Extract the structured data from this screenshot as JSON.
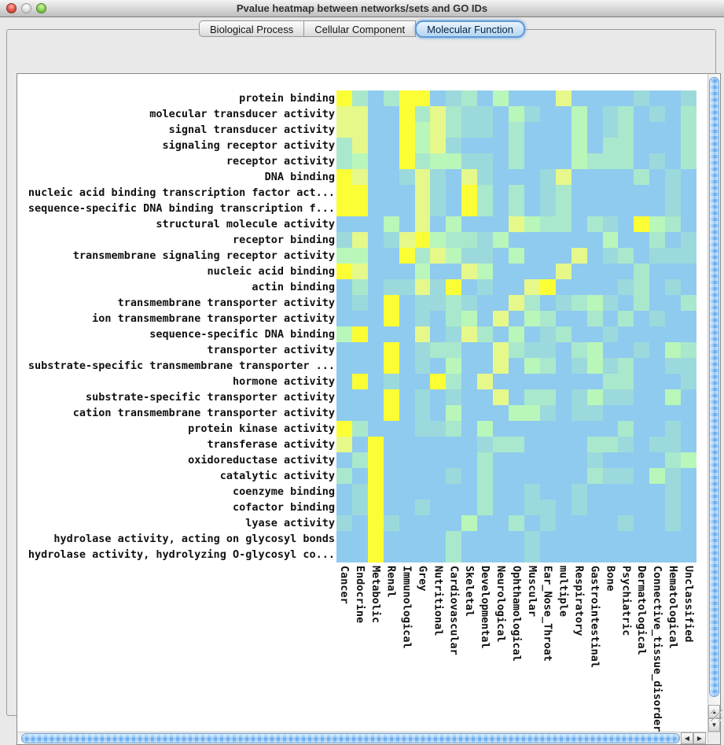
{
  "window": {
    "title": "Pvalue heatmap between networks/sets and GO IDs"
  },
  "tabs": [
    {
      "label": "Biological Process",
      "selected": false
    },
    {
      "label": "Cellular Component",
      "selected": false
    },
    {
      "label": "Molecular Function",
      "selected": true
    }
  ],
  "scrollbar_icons": {
    "up": "▲",
    "down": "▼",
    "left": "◀",
    "right": "▶"
  },
  "chart_data": {
    "type": "heatmap",
    "title": "Pvalue heatmap between networks/sets and GO IDs",
    "subtitle_tab": "Molecular Function",
    "legend_position": "none",
    "grid": "off",
    "rows": [
      "protein binding",
      "molecular transducer activity",
      "signal transducer activity",
      "signaling receptor activity",
      "receptor activity",
      "DNA binding",
      "nucleic acid binding transcription factor act...",
      "sequence-specific DNA binding transcription f...",
      "structural molecule activity",
      "receptor binding",
      "transmembrane signaling receptor activity",
      "nucleic acid binding",
      "actin binding",
      "transmembrane transporter activity",
      "ion transmembrane transporter activity",
      "sequence-specific DNA binding",
      "transporter activity",
      "substrate-specific transmembrane transporter ...",
      "hormone activity",
      "substrate-specific transporter activity",
      "cation transmembrane transporter activity",
      "protein kinase activity",
      "transferase activity",
      "oxidoreductase activity",
      "catalytic activity",
      "coenzyme binding",
      "cofactor binding",
      "lyase activity",
      "hydrolase activity, acting on glycosyl bonds",
      "hydrolase activity, hydrolyzing O-glycosyl co..."
    ],
    "columns": [
      "Cancer",
      "Endocrine",
      "Metabolic",
      "Renal",
      "Immunological",
      "Grey",
      "Nutritional",
      "Cardiovascular",
      "Skeletal",
      "Developmental",
      "Neurological",
      "Ophthamological",
      "Muscular",
      "Ear_Nose_Throat",
      "multiple",
      "Respiratory",
      "Gastrointestinal",
      "Bone",
      "Psychiatric",
      "Dermatological",
      "Connective_tissue_disorder",
      "Hematological",
      "Unclassified"
    ],
    "palette": {
      "Y": "#FBFD35",
      "y": "#E6F88A",
      "g": "#B9F6BA",
      "t": "#A9E8CC",
      "c": "#9CD9DC",
      "b": "#8FCBEE"
    },
    "palette_meaning": {
      "Y": "bright yellow — most significant (lowest p-value)",
      "y": "pale yellow-green — very significant",
      "g": "mint green — significant",
      "t": "green-teal — mildly significant",
      "c": "teal-blue — weakly significant",
      "b": "light blue — background (highest p-value)"
    },
    "cells": [
      "YtbtYYbctbgbbbybbbbcbbc",
      "yybbYtytccbgcbbgbctbcbt",
      "yybbYgytccbtbbbgbctbbbt",
      "tybbYgycbbbtbbbgbttbbbt",
      "tgbbYtggccbtbbbgtttbcbt",
      "Yybbcycbycbbbcybbbbtbcb",
      "YYbbbycbYtbtbctbbbbbbcb",
      "YYbbbycbYtbtbctbbbbbbcb",
      "bbbgbybgbbbygttbtcbYgtb",
      "cybcyYgttcgbbbbbbgbbtbc",
      "ggbbYtygccbgbbbybctbccc",
      "Yybbbgbbygbbbbybbbbtbbb",
      "btbccycYbcbbyYbbbbctbcb",
      "bcbYbcctcbbytbctgcbtbbt",
      "bbbYbcbtgbybgtbbtbtbcbb",
      "gYbbbybcytbgbctbbcbbbbb",
      "bbbYbcttbbytccbtgbbcbgt",
      "bbbYbcbgbbybgtbcgctbbcc",
      "bYbcbbYtbybbbbbbbttbbbc",
      "bbbYbcbcbbybttbcgccbbgb",
      "bbbYbcbgbbbggcbccbbbbbb",
      "Ytbbbcctbgbbbbbbbbtbbcb",
      "ybYbbbbbbcttbbbbttcbccb",
      "btYbbbbbbtbbbbbbcbbbbtg",
      "tbYbbbbcbtbbbbbbtccbgcb",
      "bcYbbbbbbtbbcbbcbbbbbcb",
      "bcYbbcbbbtbbccbcbbbbbcb",
      "cbYcbbbbgbbtbcbbbbcbbcb",
      "bbYbbbbtbbbbcbbbbbbbbbb",
      "bbYbbbbtbbbbcbbbbbbbbbb"
    ]
  }
}
